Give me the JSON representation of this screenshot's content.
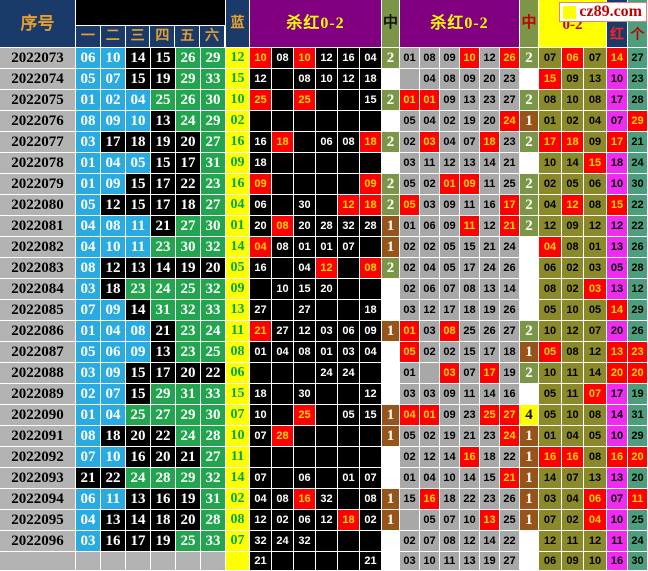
{
  "watermark": {
    "text": "cz89.com",
    "icon": "yellow-square"
  },
  "header": {
    "issue_col": "序号",
    "ball_cols": [
      "一",
      "二",
      "三",
      "四",
      "五",
      "六"
    ],
    "blue_col": "蓝",
    "kill_red_1": "杀红0-2",
    "hit_1": "中",
    "kill_red_2": "杀红0-2",
    "hit_2": "中",
    "range_label": "0-2",
    "red_label": "红",
    "unit_label": "个"
  },
  "colors": {
    "header_navy": "#1a3a6a",
    "header_orange_text": "#e6a032",
    "purple_header": "#800080",
    "ball_low_cyan": "#29abe2",
    "ball_mid_black": "#000000",
    "ball_high_green": "#23a550",
    "blue_col_bg": "#ffff00",
    "blue_col_text": "#00a651",
    "highlight_red": "#ff0000",
    "highlight_text": "#ffd800",
    "hit2_green": "#7a9646",
    "hit1_brown": "#96541a",
    "hit4_yellow": "#ffff00",
    "kill2_gray": "#a8a8a8",
    "stat_olive": "#8a8a2a",
    "hong_magenta": "#ee2bee",
    "ge_seagreen": "#4d9e7c",
    "issue_gray": "#b3b3b3"
  },
  "chart_data": {
    "type": "table",
    "note": "values suffixed with * are red-highlighted cells",
    "rows": [
      {
        "issue": "2022073",
        "balls": [
          "06",
          "10",
          "14",
          "15",
          "26",
          "29"
        ],
        "blue": "12",
        "kill1": [
          "10*",
          "08",
          "10*",
          "12",
          "16",
          "04"
        ],
        "hit1": "2",
        "kill2": [
          "01",
          "08",
          "09",
          "10*",
          "12",
          "26*"
        ],
        "hit2": "2",
        "stats": [
          "07",
          "06*",
          "07"
        ],
        "red": "14*",
        "unit": "27"
      },
      {
        "issue": "2022074",
        "balls": [
          "05",
          "07",
          "15",
          "19",
          "29",
          "33"
        ],
        "blue": "15",
        "kill1": [
          "12",
          "",
          "08",
          "10",
          "12",
          "18"
        ],
        "hit1": "",
        "kill2": [
          "",
          "04",
          "08",
          "09",
          "20",
          "23"
        ],
        "hit2": "",
        "stats": [
          "15*",
          "09",
          "13"
        ],
        "red": "10",
        "unit": "23"
      },
      {
        "issue": "2022075",
        "balls": [
          "01",
          "02",
          "04",
          "25",
          "26",
          "30"
        ],
        "blue": "10",
        "kill1": [
          "25*",
          "",
          "25*",
          "",
          "",
          "15"
        ],
        "hit1": "2",
        "kill2": [
          "01*",
          "01*",
          "09",
          "13",
          "23",
          "27"
        ],
        "hit2": "2",
        "stats": [
          "08",
          "10",
          "08"
        ],
        "red": "17",
        "unit": "28"
      },
      {
        "issue": "2022076",
        "balls": [
          "08",
          "09",
          "10",
          "13",
          "24",
          "29"
        ],
        "blue": "02",
        "kill1": [
          "",
          "",
          "",
          "",
          "",
          ""
        ],
        "hit1": "",
        "kill2": [
          "05",
          "04",
          "02",
          "19",
          "20",
          "24*"
        ],
        "hit2": "1",
        "stats": [
          "01",
          "02",
          "04"
        ],
        "red": "07",
        "unit": "29*"
      },
      {
        "issue": "2022077",
        "balls": [
          "03",
          "17",
          "18",
          "19",
          "20",
          "27"
        ],
        "blue": "16",
        "kill1": [
          "16",
          "18*",
          "",
          "06",
          "08",
          "18*"
        ],
        "hit1": "2",
        "kill2": [
          "02",
          "03*",
          "04",
          "07",
          "18*",
          "23"
        ],
        "hit2": "2",
        "stats": [
          "17*",
          "18*",
          "09"
        ],
        "red": "17*",
        "unit": "21"
      },
      {
        "issue": "2022078",
        "balls": [
          "01",
          "04",
          "05",
          "15",
          "17",
          "31"
        ],
        "blue": "09",
        "kill1": [
          "18",
          "",
          "",
          "",
          "",
          ""
        ],
        "hit1": "",
        "kill2": [
          "03",
          "11",
          "12",
          "13",
          "14",
          "21"
        ],
        "hit2": "",
        "stats": [
          "10",
          "14",
          "15*"
        ],
        "red": "18",
        "unit": "24"
      },
      {
        "issue": "2022079",
        "balls": [
          "01",
          "09",
          "15",
          "17",
          "22",
          "23"
        ],
        "blue": "16",
        "kill1": [
          "09*",
          "",
          "",
          "",
          "",
          "09*"
        ],
        "hit1": "2",
        "kill2": [
          "05",
          "02",
          "01*",
          "09*",
          "11",
          "25"
        ],
        "hit2": "2",
        "stats": [
          "02",
          "05",
          "06"
        ],
        "red": "10",
        "unit": "30"
      },
      {
        "issue": "2022080",
        "balls": [
          "05",
          "12",
          "15",
          "17",
          "18",
          "27"
        ],
        "blue": "04",
        "kill1": [
          "06",
          "",
          "30",
          "",
          "12*",
          "18*"
        ],
        "hit1": "2",
        "kill2": [
          "05*",
          "03",
          "09",
          "11",
          "16",
          "17*"
        ],
        "hit2": "2",
        "stats": [
          "04",
          "12*",
          "08"
        ],
        "red": "15*",
        "unit": "22"
      },
      {
        "issue": "2022081",
        "balls": [
          "04",
          "08",
          "11",
          "21",
          "27",
          "30"
        ],
        "blue": "01",
        "kill1": [
          "20",
          "08*",
          "20",
          "28",
          "32",
          "28"
        ],
        "hit1": "1",
        "kill2": [
          "01",
          "06",
          "09",
          "11*",
          "12",
          "21*"
        ],
        "hit2": "2",
        "stats": [
          "12",
          "09",
          "12"
        ],
        "red": "12",
        "unit": "22"
      },
      {
        "issue": "2022082",
        "balls": [
          "04",
          "10",
          "11",
          "23",
          "30",
          "32"
        ],
        "blue": "14",
        "kill1": [
          "04*",
          "08",
          "01",
          "01",
          "07",
          ""
        ],
        "hit1": "1",
        "kill2": [
          "02",
          "02",
          "05",
          "15",
          "21",
          "24"
        ],
        "hit2": "",
        "stats": [
          "04*",
          "08",
          "01"
        ],
        "red": "13",
        "unit": "26"
      },
      {
        "issue": "2022083",
        "balls": [
          "08",
          "12",
          "13",
          "14",
          "19",
          "20"
        ],
        "blue": "05",
        "kill1": [
          "16",
          "",
          "04",
          "12*",
          "",
          "08*"
        ],
        "hit1": "2",
        "kill2": [
          "02",
          "04",
          "05",
          "17",
          "24",
          "26"
        ],
        "hit2": "",
        "stats": [
          "06",
          "02",
          "03"
        ],
        "red": "05",
        "unit": "28"
      },
      {
        "issue": "2022084",
        "balls": [
          "03",
          "18",
          "23",
          "24",
          "25",
          "32"
        ],
        "blue": "09",
        "kill1": [
          "",
          "10",
          "15",
          "20",
          "",
          ""
        ],
        "hit1": "",
        "kill2": [
          "02",
          "06",
          "07",
          "08",
          "13",
          "14"
        ],
        "hit2": "",
        "stats": [
          "08",
          "02",
          "03*"
        ],
        "red": "13",
        "unit": "12"
      },
      {
        "issue": "2022085",
        "balls": [
          "07",
          "09",
          "14",
          "31",
          "32",
          "33"
        ],
        "blue": "13",
        "kill1": [
          "27",
          "",
          "27",
          "",
          "",
          "18"
        ],
        "hit1": "",
        "kill2": [
          "03",
          "12",
          "17",
          "18",
          "19",
          "26"
        ],
        "hit2": "",
        "stats": [
          "05",
          "10",
          "05"
        ],
        "red": "14*",
        "unit": "29"
      },
      {
        "issue": "2022086",
        "balls": [
          "01",
          "04",
          "08",
          "21",
          "23",
          "24"
        ],
        "blue": "11",
        "kill1": [
          "21*",
          "27",
          "12",
          "03",
          "06",
          "09"
        ],
        "hit1": "1",
        "kill2": [
          "01*",
          "03",
          "08*",
          "25",
          "26",
          "27"
        ],
        "hit2": "2",
        "stats": [
          "10",
          "12",
          "07"
        ],
        "red": "20",
        "unit": "26"
      },
      {
        "issue": "2022087",
        "balls": [
          "05",
          "06",
          "09",
          "13",
          "23",
          "25"
        ],
        "blue": "08",
        "kill1": [
          "01",
          "04",
          "08",
          "01",
          "03",
          "04"
        ],
        "hit1": "",
        "kill2": [
          "05*",
          "02",
          "02",
          "15",
          "17",
          "18"
        ],
        "hit2": "1",
        "stats": [
          "05*",
          "08",
          "12"
        ],
        "red": "13*",
        "unit": "23*"
      },
      {
        "issue": "2022088",
        "balls": [
          "03",
          "09",
          "15",
          "17",
          "20",
          "22"
        ],
        "blue": "06",
        "kill1": [
          "",
          "",
          "",
          "24",
          "24",
          ""
        ],
        "hit1": "",
        "kill2": [
          "01",
          "",
          "03*",
          "07",
          "17*",
          "19"
        ],
        "hit2": "2",
        "stats": [
          "10",
          "11",
          "14"
        ],
        "red": "20*",
        "unit": "20*"
      },
      {
        "issue": "2022089",
        "balls": [
          "02",
          "07",
          "15",
          "29",
          "31",
          "33"
        ],
        "blue": "15",
        "kill1": [
          "18",
          "",
          "30",
          "",
          "",
          "12"
        ],
        "hit1": "",
        "kill2": [
          "03",
          "03",
          "09",
          "11",
          "14",
          "16"
        ],
        "hit2": "",
        "stats": [
          "05",
          "11",
          "07*"
        ],
        "red": "17",
        "unit": "19"
      },
      {
        "issue": "2022090",
        "balls": [
          "01",
          "04",
          "25",
          "27",
          "29",
          "30"
        ],
        "blue": "07",
        "kill1": [
          "10",
          "",
          "25*",
          "",
          "05",
          "15"
        ],
        "hit1": "1",
        "kill2": [
          "04*",
          "01*",
          "09",
          "23",
          "25*",
          "27*"
        ],
        "hit2": "4",
        "stats": [
          "05",
          "10",
          "08"
        ],
        "red": "14",
        "unit": "31"
      },
      {
        "issue": "2022091",
        "balls": [
          "08",
          "18",
          "20",
          "22",
          "24",
          "28"
        ],
        "blue": "10",
        "kill1": [
          "07",
          "28*",
          "",
          "",
          "",
          ""
        ],
        "hit1": "1",
        "kill2": [
          "05",
          "02",
          "19",
          "21",
          "23",
          "24*"
        ],
        "hit2": "1",
        "stats": [
          "01",
          "04",
          "05"
        ],
        "red": "10",
        "unit": "29"
      },
      {
        "issue": "2022092",
        "balls": [
          "07",
          "10",
          "16",
          "20",
          "21",
          "27"
        ],
        "blue": "11",
        "kill1": [
          "",
          "",
          "",
          "",
          "",
          ""
        ],
        "hit1": "",
        "kill2": [
          "02",
          "12",
          "14",
          "16*",
          "18",
          "22"
        ],
        "hit2": "1",
        "stats": [
          "16*",
          "16*",
          "08"
        ],
        "red": "16*",
        "unit": "20*"
      },
      {
        "issue": "2022093",
        "balls": [
          "21",
          "22",
          "24",
          "28",
          "29",
          "32"
        ],
        "blue": "14",
        "kill1": [
          "07",
          "",
          "06",
          "",
          "01",
          "07"
        ],
        "hit1": "",
        "kill2": [
          "01",
          "04",
          "10",
          "14",
          "15",
          "21*"
        ],
        "hit2": "1",
        "stats": [
          "14",
          "07",
          "13"
        ],
        "red": "13",
        "unit": "20"
      },
      {
        "issue": "2022094",
        "balls": [
          "06",
          "11",
          "13",
          "16",
          "19",
          "31"
        ],
        "blue": "02",
        "kill1": [
          "04",
          "08",
          "16*",
          "32",
          "",
          "08"
        ],
        "hit1": "1",
        "kill2": [
          "15",
          "16*",
          "18",
          "22",
          "23",
          "26"
        ],
        "hit2": "1",
        "stats": [
          "03",
          "04",
          "06*"
        ],
        "red": "07",
        "unit": "11*"
      },
      {
        "issue": "2022095",
        "balls": [
          "04",
          "13",
          "14",
          "18",
          "20",
          "28"
        ],
        "blue": "08",
        "kill1": [
          "12",
          "02",
          "06",
          "12",
          "18*",
          "02"
        ],
        "hit1": "1",
        "kill2": [
          "",
          "05",
          "07",
          "10",
          "13*",
          "25"
        ],
        "hit2": "1",
        "stats": [
          "07",
          "02",
          "04*"
        ],
        "red": "10",
        "unit": "25"
      },
      {
        "issue": "2022096",
        "balls": [
          "03",
          "16",
          "17",
          "19",
          "25",
          "33"
        ],
        "blue": "07",
        "kill1": [
          "32",
          "24",
          "32",
          "",
          "",
          ""
        ],
        "hit1": "",
        "kill2": [
          "02",
          "07",
          "08",
          "12",
          "14",
          "22"
        ],
        "hit2": "",
        "stats": [
          "12",
          "11",
          "12"
        ],
        "red": "11",
        "unit": "24"
      },
      {
        "issue": "",
        "balls": [
          "",
          "",
          "",
          "",
          "",
          ""
        ],
        "blue": "",
        "kill1": [
          "21",
          "",
          "",
          "",
          "",
          "21"
        ],
        "hit1": "",
        "kill2": [
          "03",
          "10",
          "11",
          "13",
          "19",
          "27"
        ],
        "hit2": "",
        "stats": [
          "06",
          "09",
          "10"
        ],
        "red": "16",
        "unit": "30"
      }
    ]
  }
}
